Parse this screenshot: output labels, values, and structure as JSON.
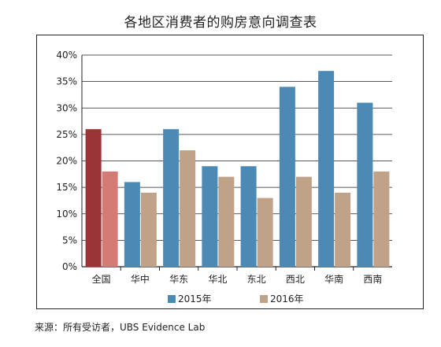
{
  "chart_data": {
    "type": "bar",
    "title": "各地区消费者的购房意向调查表",
    "categories": [
      "全国",
      "华中",
      "华东",
      "华北",
      "东北",
      "西北",
      "华南",
      "西南"
    ],
    "series": [
      {
        "name": "2015年",
        "values": [
          26,
          16,
          26,
          19,
          19,
          34,
          37,
          31
        ],
        "color": "#4a8ab5"
      },
      {
        "name": "2016年",
        "values": [
          18,
          14,
          22,
          17,
          13,
          17,
          14,
          18
        ],
        "color": "#bfa287"
      }
    ],
    "highlight": {
      "category": "全国",
      "colors": [
        "#9b3535",
        "#d47b76"
      ]
    },
    "ylim": [
      0,
      40
    ],
    "yticks": [
      "0%",
      "5%",
      "10%",
      "15%",
      "20%",
      "25%",
      "30%",
      "35%",
      "40%"
    ],
    "grid": true,
    "legend": "bottom-center",
    "source": "来源：所有受访者，UBS Evidence Lab"
  }
}
